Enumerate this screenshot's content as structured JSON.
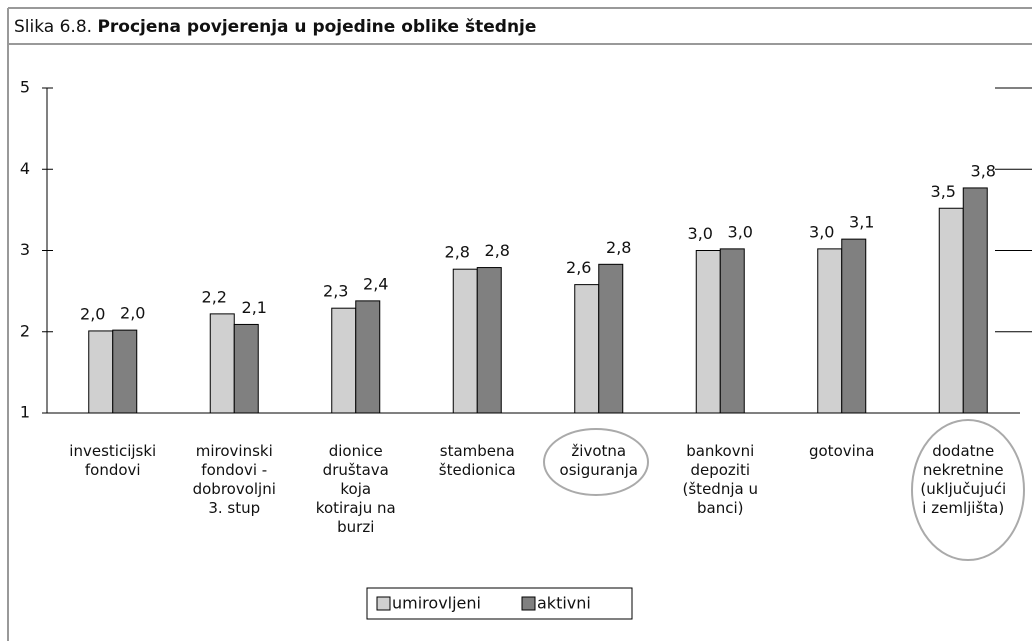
{
  "chart_data": {
    "type": "bar",
    "figure_label": "Slika 6.8.",
    "title": "Procjena povjerenja u pojedine oblike štednje",
    "categories": [
      "investicijski\nfondovi",
      "mirovinski\nfondovi -\ndobrovoljni\n3. stup",
      "dionice\ndruštava\nkoja\nkotiraju na\nburzi",
      "stambena\nštedionica",
      "životna\nosiguranja",
      "bankovni\ndepoziti\n(štednja u\nbanci)",
      "gotovina",
      "dodatne\nnekretnine\n(uključujući\ni zemljišta)"
    ],
    "series": [
      {
        "name": "umirovljeni",
        "color": "#d0d0d0",
        "values": [
          2.01,
          2.22,
          2.29,
          2.77,
          2.58,
          3.0,
          3.02,
          3.52
        ],
        "value_labels": [
          "2,0",
          "2,2",
          "2,3",
          "2,8",
          "2,6",
          "3,0",
          "3,0",
          "3,5"
        ]
      },
      {
        "name": "aktivni",
        "color": "#808080",
        "values": [
          2.02,
          2.09,
          2.38,
          2.79,
          2.83,
          3.02,
          3.14,
          3.77
        ],
        "value_labels": [
          "2,0",
          "2,1",
          "2,4",
          "2,8",
          "2,8",
          "3,0",
          "3,1",
          "3,8"
        ]
      }
    ],
    "ylim": [
      1,
      5
    ],
    "yticks": [
      1,
      2,
      3,
      4,
      5
    ],
    "grid": true,
    "legend": "bottom"
  }
}
